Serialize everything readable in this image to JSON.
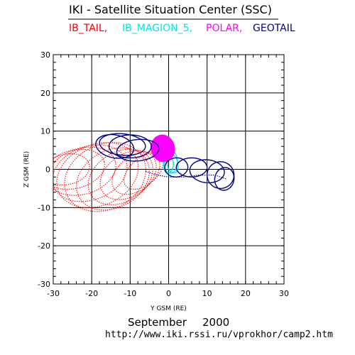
{
  "header": {
    "title": "IKI - Satellite Situation Center (SSC)"
  },
  "legend": [
    {
      "label": "IB_TAIL,",
      "color": "#ff0000"
    },
    {
      "label": "IB_MAGION_5,",
      "color": "#00e5ee"
    },
    {
      "label": "POLAR,",
      "color": "#ff00ff"
    },
    {
      "label": "GEOTAIL",
      "color": "#000080"
    }
  ],
  "footer": {
    "month": "September",
    "year": "2000",
    "url": "http://www.iki.rssi.ru/vprokhor/camp2.htm"
  },
  "chart_data": {
    "type": "line",
    "xlabel": "Y GSM (RE)",
    "ylabel": "Z GSM (RE)",
    "xlim": [
      -30,
      30
    ],
    "ylim": [
      -30,
      30
    ],
    "xticks": [
      -30,
      -20,
      -10,
      0,
      10,
      20,
      30
    ],
    "yticks": [
      -30,
      -20,
      -10,
      0,
      10,
      20,
      30
    ],
    "xtick_labels": [
      "-30",
      "-20",
      "-10",
      "0",
      "10",
      "20",
      "30"
    ],
    "ytick_labels": [
      "-30",
      "-20",
      "-10",
      "0",
      "10",
      "20",
      "30"
    ],
    "grid": true,
    "series": [
      {
        "name": "IB_TAIL",
        "color": "#ff0000",
        "style": "dotted-loops",
        "loops": [
          {
            "center": [
              -26.5,
              0
            ],
            "ry": 6,
            "rz": 4.0,
            "tilt": 0.2
          },
          {
            "center": [
              -24.5,
              0
            ],
            "ry": 8,
            "rz": 5.0,
            "tilt": 0.25
          },
          {
            "center": [
              -22.5,
              -0.5
            ],
            "ry": 9,
            "rz": 6.0,
            "tilt": 0.3
          },
          {
            "center": [
              -20.5,
              -1.0
            ],
            "ry": 10,
            "rz": 7.0,
            "tilt": 0.35
          },
          {
            "center": [
              -18.5,
              -1.5
            ],
            "ry": 11,
            "rz": 8.0,
            "tilt": 0.4
          },
          {
            "center": [
              -16.5,
              -2.0
            ],
            "ry": 11,
            "rz": 8.5,
            "tilt": 0.45
          },
          {
            "center": [
              -14.5,
              -2.5
            ],
            "ry": 10,
            "rz": 7.5,
            "tilt": 0.5
          },
          {
            "center": [
              -12.5,
              -2.0
            ],
            "ry": 9,
            "rz": 6.5,
            "tilt": 0.55
          },
          {
            "center": [
              -10.5,
              -1.5
            ],
            "ry": 8,
            "rz": 5.5,
            "tilt": 0.6
          },
          {
            "center": [
              -8.5,
              -1.0
            ],
            "ry": 7,
            "rz": 4.5,
            "tilt": 0.65
          },
          {
            "center": [
              -6.5,
              -0.5
            ],
            "ry": 6,
            "rz": 3.5,
            "tilt": 0.7
          }
        ]
      },
      {
        "name": "IB_MAGION_5",
        "color": "#00e5ee",
        "style": "solid-loops",
        "loops": [
          {
            "center": [
              0.5,
              2.0
            ],
            "ry": 1.8,
            "rz": 3.0,
            "tilt": 0.0
          },
          {
            "center": [
              1.0,
              1.5
            ],
            "ry": 1.4,
            "rz": 2.5,
            "tilt": 0.2
          },
          {
            "center": [
              0.0,
              1.0
            ],
            "ry": 1.2,
            "rz": 2.0,
            "tilt": -0.2
          }
        ]
      },
      {
        "name": "POLAR",
        "color": "#ff00ff",
        "style": "dense-blob",
        "blob": {
          "center": [
            -1.5,
            5.5
          ],
          "ry": 3.0,
          "rz": 3.5
        }
      },
      {
        "name": "GEOTAIL",
        "color": "#000080",
        "style": "solid-loops",
        "loops": [
          {
            "center": [
              -14.0,
              6.0
            ],
            "ry": 5.0,
            "rz": 3.0,
            "tilt": -0.2
          },
          {
            "center": [
              -12.0,
              6.5
            ],
            "ry": 6.0,
            "rz": 2.8,
            "tilt": -0.1
          },
          {
            "center": [
              -10.0,
              6.0
            ],
            "ry": 5.5,
            "rz": 3.0,
            "tilt": 0.0
          },
          {
            "center": [
              -8.0,
              5.0
            ],
            "ry": 5.5,
            "rz": 2.8,
            "tilt": 0.1
          },
          {
            "center": [
              2.0,
              0.5
            ],
            "ry": 3.0,
            "rz": 2.5,
            "tilt": 0.1
          },
          {
            "center": [
              6.0,
              0.5
            ],
            "ry": 4.0,
            "rz": 2.5,
            "tilt": 0.0
          },
          {
            "center": [
              10.0,
              -0.5
            ],
            "ry": 4.5,
            "rz": 3.0,
            "tilt": -0.1
          },
          {
            "center": [
              13.5,
              -1.5
            ],
            "ry": 3.5,
            "rz": 3.5,
            "tilt": -0.2
          },
          {
            "center": [
              14.5,
              -2.5
            ],
            "ry": 2.5,
            "rz": 3.0,
            "tilt": -0.2
          }
        ],
        "bridge": [
          [
            -6.0,
            -0.5
          ],
          [
            -3.0,
            -1.5
          ],
          [
            0.0,
            -2.0
          ],
          [
            4.0,
            -2.0
          ],
          [
            8.0,
            -1.5
          ],
          [
            12.0,
            -1.5
          ],
          [
            15.0,
            -2.5
          ]
        ]
      }
    ]
  }
}
